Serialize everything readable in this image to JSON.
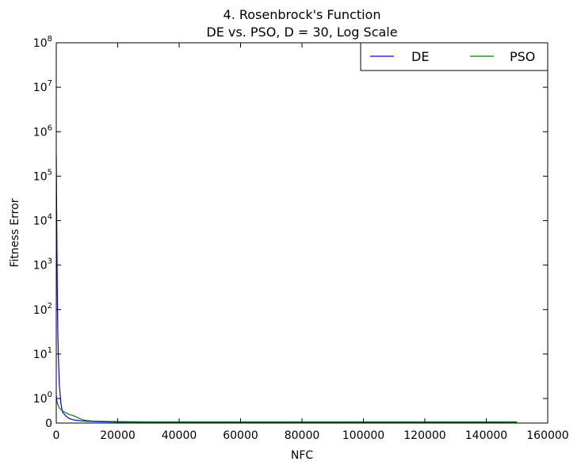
{
  "chart_data": {
    "type": "line",
    "title_line1": "4.   Rosenbrock's Function",
    "title_line2": "DE vs. PSO, D = 30, Log Scale",
    "xlabel": "NFC",
    "ylabel": "Fitness Error",
    "xlim": [
      0,
      160000
    ],
    "yscale": "symlog",
    "ylim": [
      0,
      100000000
    ],
    "x_ticks": [
      "0",
      "20000",
      "40000",
      "60000",
      "80000",
      "100000",
      "120000",
      "140000",
      "160000"
    ],
    "y_ticks": [
      {
        "value": 0,
        "base": "0",
        "exp": ""
      },
      {
        "value": 1,
        "base": "10",
        "exp": "0"
      },
      {
        "value": 10,
        "base": "10",
        "exp": "1"
      },
      {
        "value": 100,
        "base": "10",
        "exp": "2"
      },
      {
        "value": 1000,
        "base": "10",
        "exp": "3"
      },
      {
        "value": 10000,
        "base": "10",
        "exp": "4"
      },
      {
        "value": 100000,
        "base": "10",
        "exp": "5"
      },
      {
        "value": 1000000,
        "base": "10",
        "exp": "6"
      },
      {
        "value": 10000000,
        "base": "10",
        "exp": "7"
      },
      {
        "value": 100000000,
        "base": "10",
        "exp": "8"
      }
    ],
    "legend": {
      "placement": "top-right",
      "columns": 2
    },
    "series": [
      {
        "name": "DE",
        "color": "#0000ff",
        "x": [
          0,
          100,
          200,
          300,
          400,
          500,
          700,
          1000,
          1500,
          2000,
          3000,
          4000,
          5000,
          6000,
          8000,
          10000,
          15000,
          20000,
          40000,
          60000,
          80000,
          100000,
          120000,
          140000,
          150000
        ],
        "y": [
          300000,
          30000,
          3000,
          500,
          100,
          30,
          8,
          2,
          0.8,
          0.45,
          0.3,
          0.2,
          0.15,
          0.12,
          0.09,
          0.07,
          0.05,
          0.04,
          0.03,
          0.025,
          0.02,
          0.02,
          0.02,
          0.02,
          0.02
        ]
      },
      {
        "name": "PSO",
        "color": "#008000",
        "x": [
          0,
          200,
          500,
          1000,
          1500,
          2000,
          3000,
          4000,
          5000,
          6000,
          7000,
          8000,
          9000,
          10000,
          12000,
          15000,
          20000,
          30000,
          40000,
          60000,
          80000,
          100000,
          120000,
          140000,
          150000
        ],
        "y": [
          1.2,
          0.9,
          0.75,
          0.62,
          0.55,
          0.5,
          0.42,
          0.36,
          0.32,
          0.28,
          0.22,
          0.16,
          0.12,
          0.1,
          0.08,
          0.07,
          0.06,
          0.05,
          0.05,
          0.05,
          0.05,
          0.05,
          0.05,
          0.05,
          0.05
        ]
      }
    ]
  }
}
